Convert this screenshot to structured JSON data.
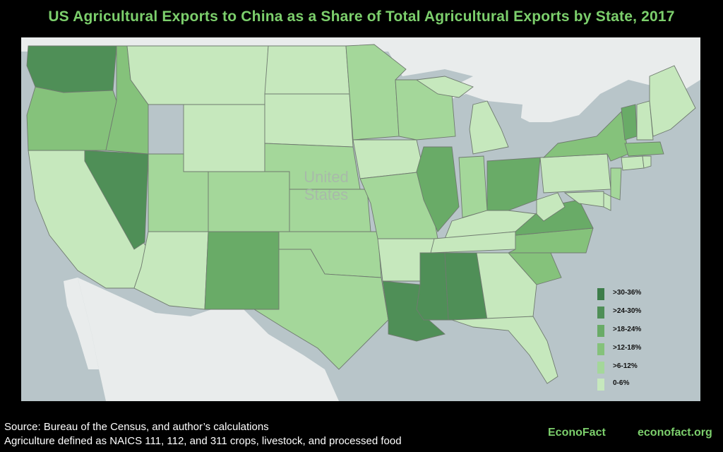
{
  "title": "US Agricultural Exports to China as a Share of Total Agricultural Exports by State, 2017",
  "map": {
    "country_label": [
      "United",
      "States"
    ],
    "colors": {
      "land": "#e9ecec",
      "water": "#b8c5c9",
      "border": "#6f7a6f"
    },
    "legend": [
      {
        "label": ">30-36%",
        "color": "#3d7d4a"
      },
      {
        "label": ">24-30%",
        "color": "#4f8f57"
      },
      {
        "label": ">18-24%",
        "color": "#69ab67"
      },
      {
        "label": ">12-18%",
        "color": "#85c27b"
      },
      {
        "label": ">6-12%",
        "color": "#a4d79a"
      },
      {
        "label": "0-6%",
        "color": "#c6e8bd"
      }
    ]
  },
  "footer": {
    "source": "Source: Bureau of the Census, and author’s calculations",
    "note": "Agriculture defined as NAICS 111, 112, and 311 crops, livestock, and processed food"
  },
  "brand": {
    "name": "EconoFact",
    "url": "econofact.org"
  }
}
